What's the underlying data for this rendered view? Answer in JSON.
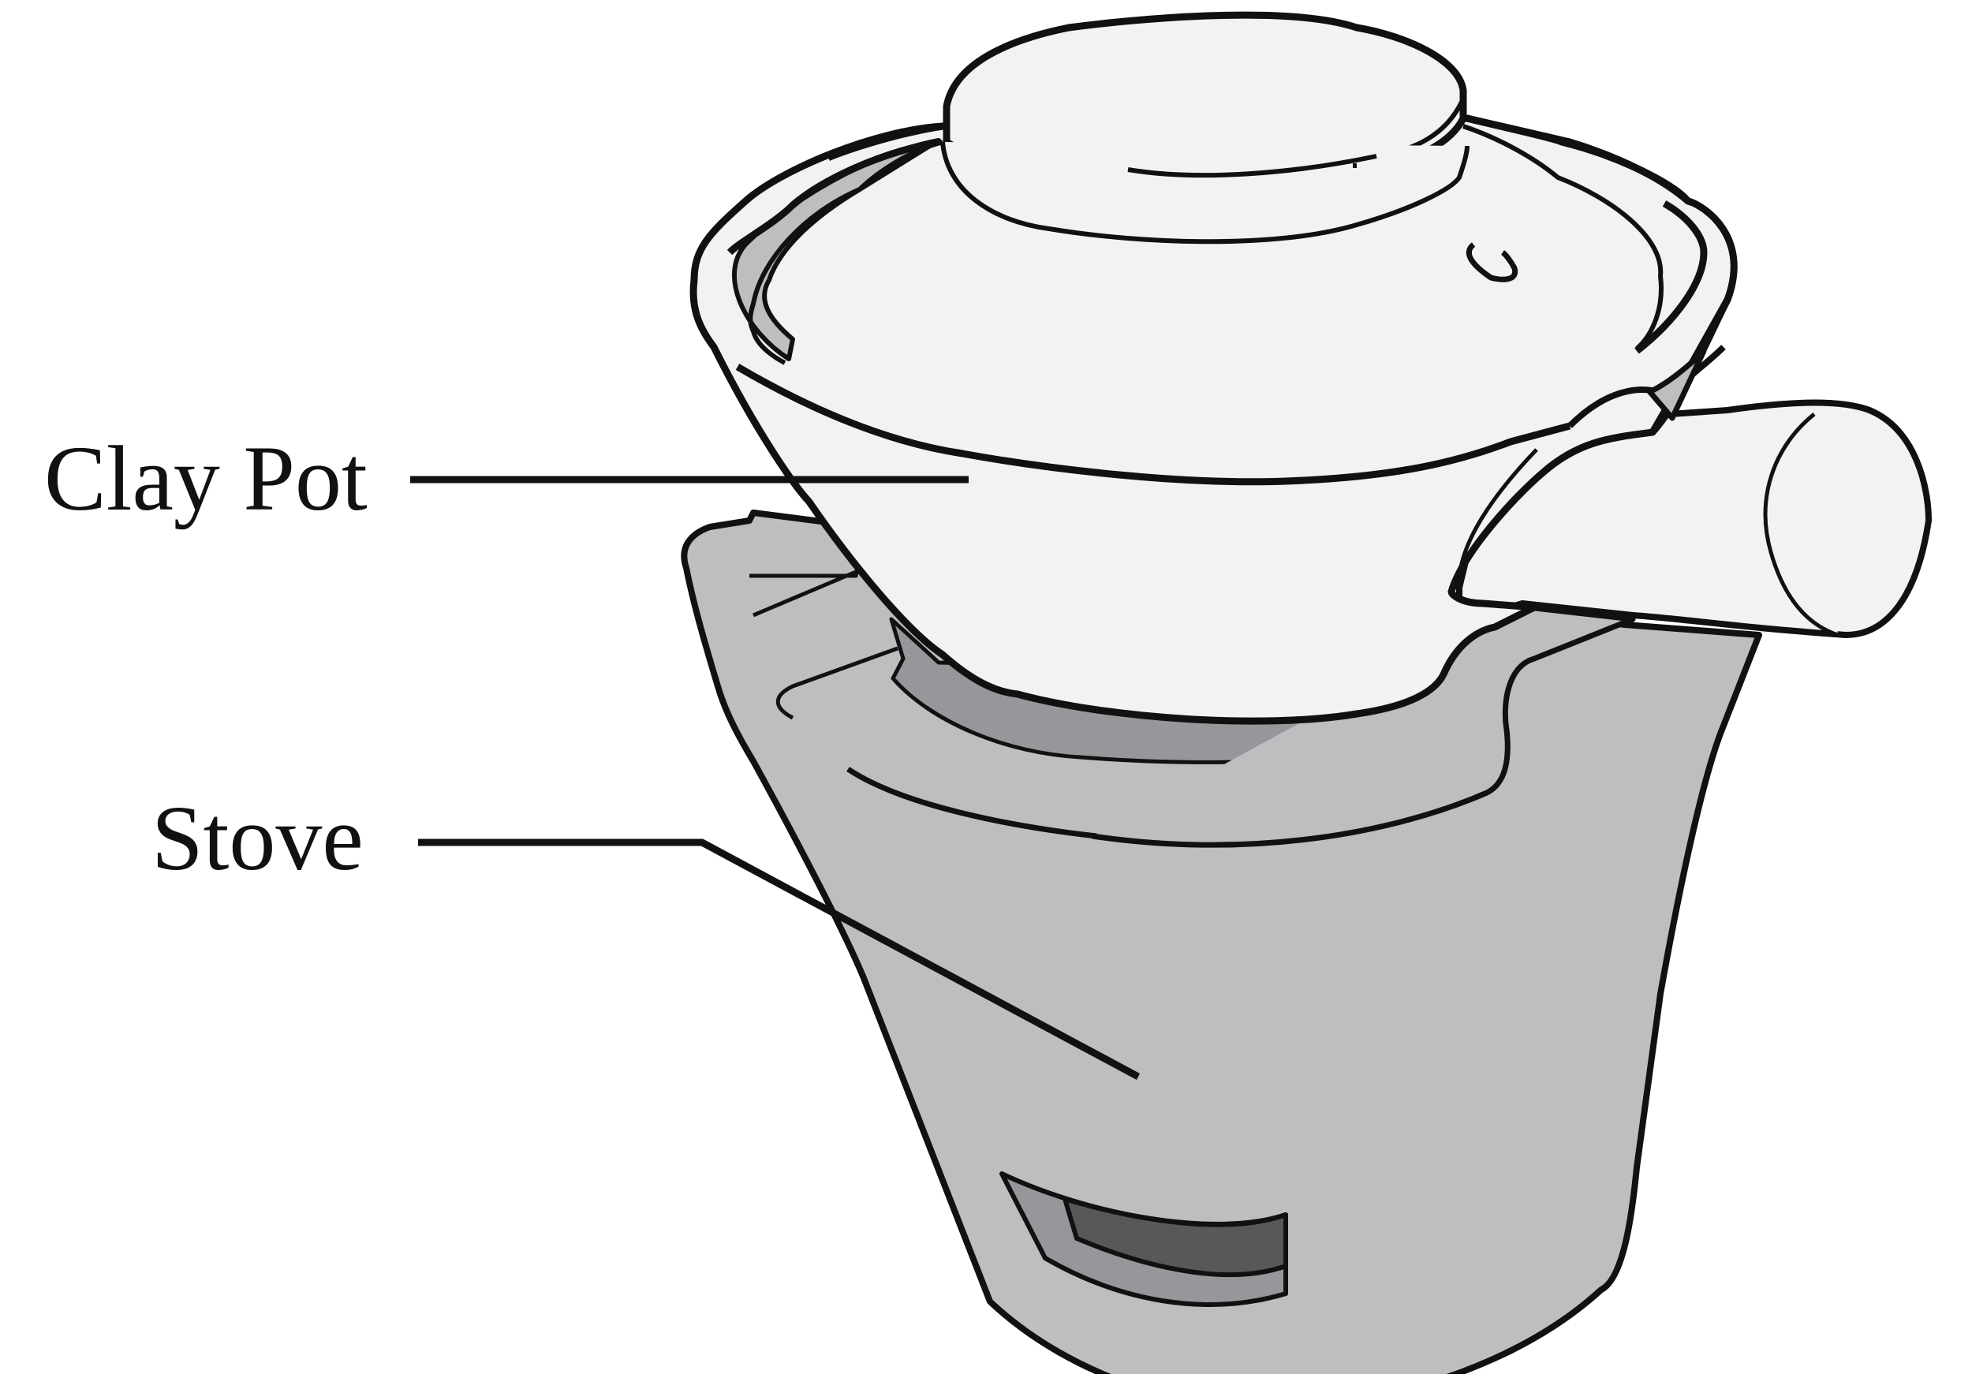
{
  "labels": {
    "clay_pot": "Clay Pot",
    "stove": "Stove"
  },
  "colors": {
    "outline": "#111111",
    "pot_fill": "#f2f2f2",
    "stove_fill": "#bdbec0",
    "stove_inner": "#96979a",
    "vent_dark": "#58585a",
    "leader_line": "#111111"
  }
}
